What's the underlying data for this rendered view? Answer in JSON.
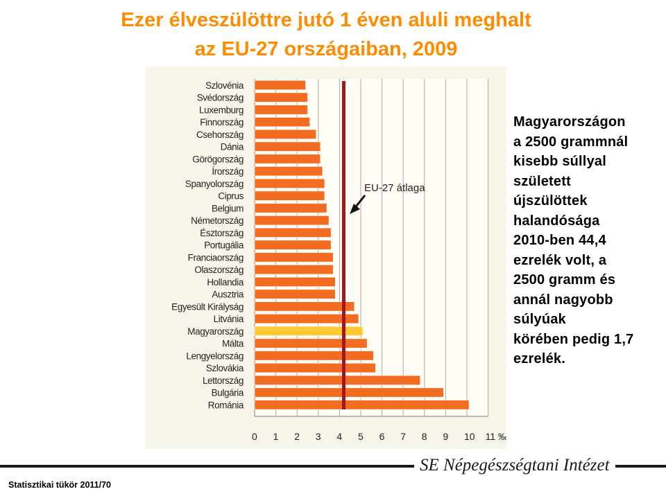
{
  "title_line1": "Ezer élveszülöttre jutó 1 éven aluli meghalt",
  "title_line2": "az EU-27 országaiban, 2009",
  "side_text": "Magyarországon\na 2500 grammnál\nkisebb súllyal\nszületett\nújszülöttek\nhalandósága\n2010-ben 44,4\nezrelék volt, a\n2500 gramm és\nannál nagyobb\nsúlyúak\nkörében pedig 1,7\nezrelék.",
  "footer": {
    "institute": "SE Népegészségtani Intézet",
    "source": "Statisztikai tükör 2011/70"
  },
  "colors": {
    "title": "#ff8c00",
    "bar": "#f26d21",
    "bar_highlight": "#ffc933",
    "eu_line": "#a3171b",
    "panel_background": "#f7f4ea"
  },
  "chart_data": {
    "type": "bar",
    "orientation": "horizontal",
    "categories": [
      "Szlovénia",
      "Svédország",
      "Luxemburg",
      "Finnország",
      "Csehország",
      "Dánia",
      "Görögország",
      "Írország",
      "Spanyolország",
      "Ciprus",
      "Belgium",
      "Németország",
      "Észtország",
      "Portugália",
      "Franciaország",
      "Olaszország",
      "Hollandia",
      "Ausztria",
      "Egyesült Királyság",
      "Litvánia",
      "Magyarország",
      "Málta",
      "Lengyelország",
      "Szlovákia",
      "Lettország",
      "Bulgária",
      "Románia"
    ],
    "values": [
      2.4,
      2.5,
      2.5,
      2.6,
      2.9,
      3.1,
      3.1,
      3.2,
      3.3,
      3.3,
      3.4,
      3.5,
      3.6,
      3.6,
      3.7,
      3.7,
      3.8,
      3.8,
      4.7,
      4.9,
      5.1,
      5.3,
      5.6,
      5.7,
      7.8,
      8.9,
      10.1
    ],
    "highlight_category": "Magyarország",
    "eu_average": {
      "label": "EU-27 átlaga",
      "value": 4.2
    },
    "xlim": [
      0,
      11
    ],
    "xticks": [
      "0",
      "1",
      "2",
      "3",
      "4",
      "5",
      "6",
      "7",
      "8",
      "9",
      "10",
      "11 ‰"
    ],
    "grid": true
  }
}
